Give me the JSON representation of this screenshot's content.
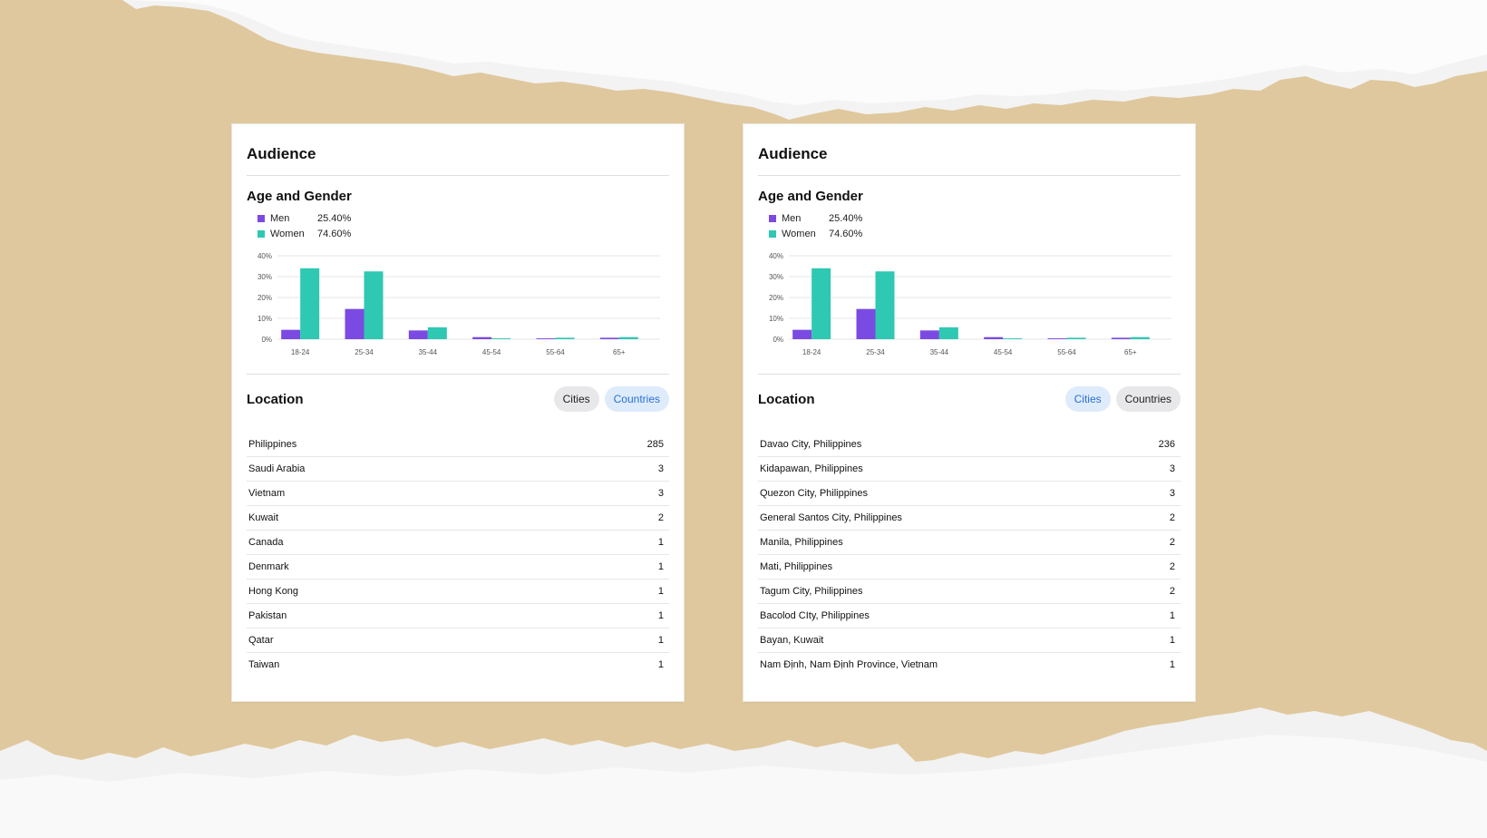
{
  "colors": {
    "men": "#7b4ae2",
    "women": "#2ec8b3",
    "background": "#dfc89d",
    "paper": "#f2f2f2"
  },
  "panels": [
    {
      "title": "Audience",
      "age_gender_title": "Age and Gender",
      "legend": [
        {
          "label": "Men",
          "value": "25.40%"
        },
        {
          "label": "Women",
          "value": "74.60%"
        }
      ],
      "location_title": "Location",
      "location_tabs": [
        {
          "label": "Cities",
          "selected": false
        },
        {
          "label": "Countries",
          "selected": true
        }
      ],
      "locations": [
        {
          "name": "Philippines",
          "count": "285"
        },
        {
          "name": "Saudi Arabia",
          "count": "3"
        },
        {
          "name": "Vietnam",
          "count": "3"
        },
        {
          "name": "Kuwait",
          "count": "2"
        },
        {
          "name": "Canada",
          "count": "1"
        },
        {
          "name": "Denmark",
          "count": "1"
        },
        {
          "name": "Hong Kong",
          "count": "1"
        },
        {
          "name": "Pakistan",
          "count": "1"
        },
        {
          "name": "Qatar",
          "count": "1"
        },
        {
          "name": "Taiwan",
          "count": "1"
        }
      ]
    },
    {
      "title": "Audience",
      "age_gender_title": "Age and Gender",
      "legend": [
        {
          "label": "Men",
          "value": "25.40%"
        },
        {
          "label": "Women",
          "value": "74.60%"
        }
      ],
      "location_title": "Location",
      "location_tabs": [
        {
          "label": "Cities",
          "selected": true
        },
        {
          "label": "Countries",
          "selected": false
        }
      ],
      "locations": [
        {
          "name": "Davao City, Philippines",
          "count": "236"
        },
        {
          "name": "Kidapawan, Philippines",
          "count": "3"
        },
        {
          "name": "Quezon City, Philippines",
          "count": "3"
        },
        {
          "name": "General Santos City, Philippines",
          "count": "2"
        },
        {
          "name": "Manila, Philippines",
          "count": "2"
        },
        {
          "name": "Mati, Philippines",
          "count": "2"
        },
        {
          "name": "Tagum City, Philippines",
          "count": "2"
        },
        {
          "name": "Bacolod CIty, Philippines",
          "count": "1"
        },
        {
          "name": "Bayan, Kuwait",
          "count": "1"
        },
        {
          "name": "Nam Định, Nam Định Province, Vietnam",
          "count": "1"
        }
      ]
    }
  ],
  "chart_data": [
    {
      "type": "bar",
      "categories": [
        "18-24",
        "25-34",
        "35-44",
        "45-54",
        "55-64",
        "65+"
      ],
      "series": [
        {
          "name": "Men",
          "values": [
            4.5,
            14.5,
            4.2,
            1.0,
            0.4,
            0.7
          ]
        },
        {
          "name": "Women",
          "values": [
            34.0,
            32.5,
            5.7,
            0.4,
            0.7,
            1.0
          ]
        }
      ],
      "y_ticks": [
        "0%",
        "10%",
        "20%",
        "30%",
        "40%"
      ],
      "ylim": [
        0,
        40
      ],
      "grid": true
    },
    {
      "type": "bar",
      "categories": [
        "18-24",
        "25-34",
        "35-44",
        "45-54",
        "55-64",
        "65+"
      ],
      "series": [
        {
          "name": "Men",
          "values": [
            4.5,
            14.5,
            4.2,
            1.0,
            0.4,
            0.7
          ]
        },
        {
          "name": "Women",
          "values": [
            34.0,
            32.5,
            5.7,
            0.4,
            0.7,
            1.0
          ]
        }
      ],
      "y_ticks": [
        "0%",
        "10%",
        "20%",
        "30%",
        "40%"
      ],
      "ylim": [
        0,
        40
      ],
      "grid": true
    }
  ]
}
